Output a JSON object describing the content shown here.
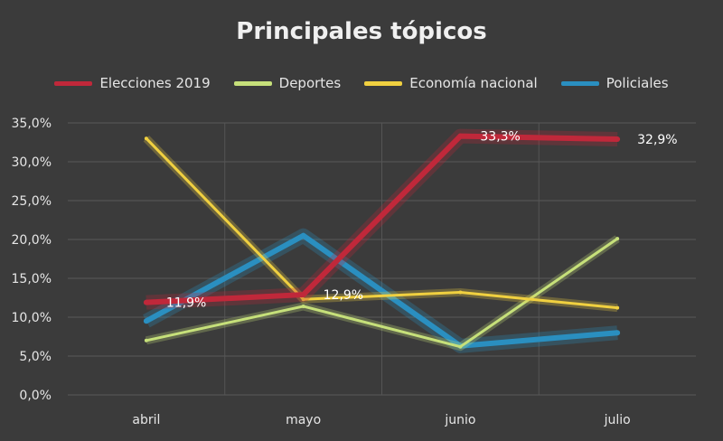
{
  "chart_data": {
    "type": "line",
    "title": "Principales tópicos",
    "categories": [
      "abril",
      "mayo",
      "junio",
      "julio"
    ],
    "ylim": [
      0,
      35
    ],
    "yticks": [
      "0,0%",
      "5,0%",
      "10,0%",
      "15,0%",
      "20,0%",
      "25,0%",
      "30,0%",
      "35,0%"
    ],
    "grid": true,
    "legend_position": "top",
    "series": [
      {
        "name": "Elecciones 2019",
        "color": "#c0283a",
        "values": [
          11.9,
          12.9,
          33.3,
          32.9
        ],
        "data_labels": [
          "11,9%",
          "12,9%",
          "33,3%",
          "32,9%"
        ]
      },
      {
        "name": "Deportes",
        "color": "#c6e07a",
        "values": [
          7.0,
          11.4,
          6.2,
          20.1
        ],
        "data_labels": []
      },
      {
        "name": "Economía nacional",
        "color": "#f0d040",
        "values": [
          33.0,
          12.3,
          13.2,
          11.2
        ],
        "data_labels": []
      },
      {
        "name": "Policiales",
        "color": "#2a8fc0",
        "values": [
          9.5,
          20.5,
          6.3,
          8.0
        ],
        "data_labels": []
      }
    ]
  }
}
